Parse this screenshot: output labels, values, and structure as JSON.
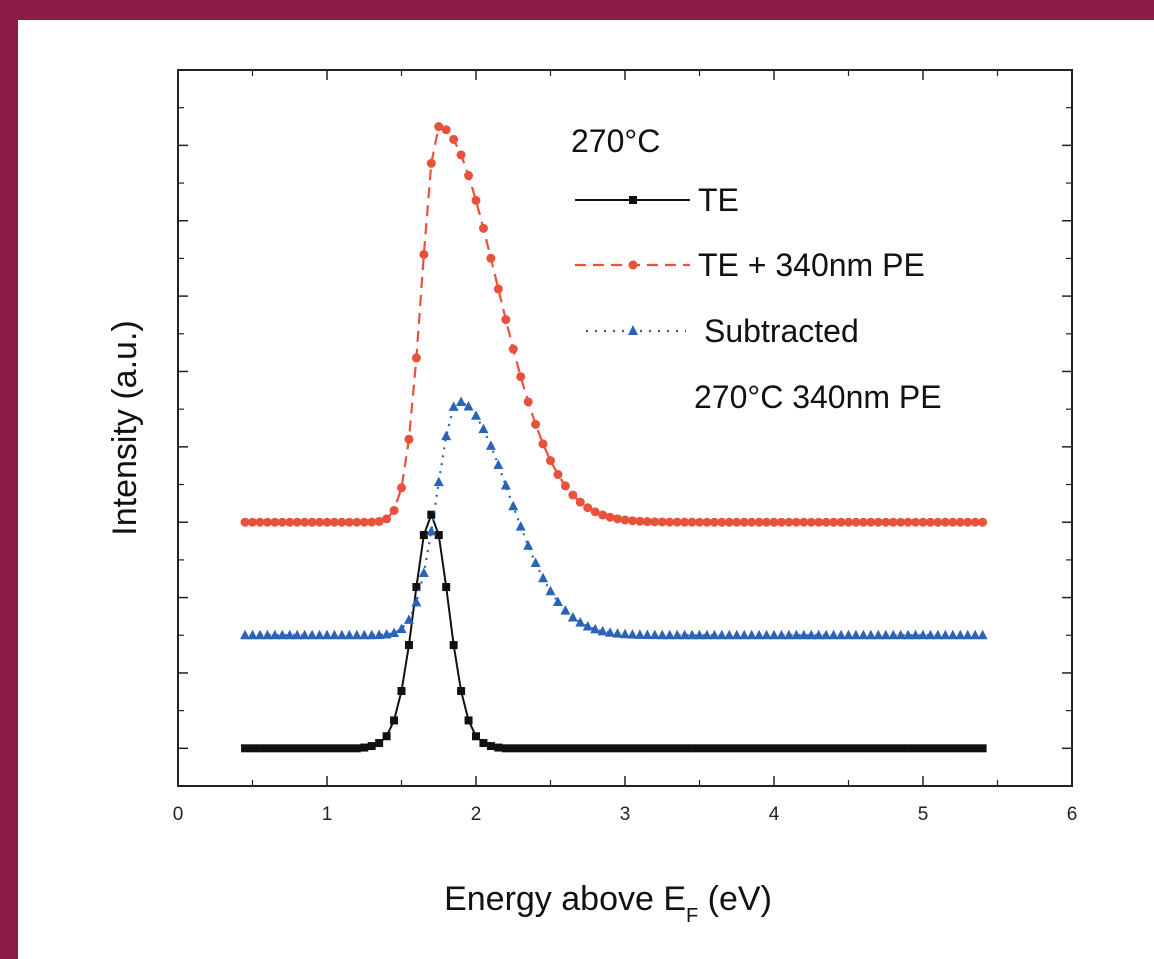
{
  "colors": {
    "frame": "#8a1c45",
    "te": "#111111",
    "te_pe": "#e8513a",
    "subtracted": "#2a63b7"
  },
  "chart_data": {
    "type": "line",
    "title": "",
    "xlabel": "Energy above E",
    "xlabel_sub": "F",
    "xlabel_unit": " (eV)",
    "ylabel": "Intensity (a.u.)",
    "xlim": [
      0,
      6
    ],
    "ylim": [
      -0.5,
      9
    ],
    "y_tick_labels": false,
    "x_ticks": [
      "0",
      "1",
      "2",
      "3",
      "4",
      "5",
      "6"
    ],
    "legend": {
      "header": "270°C",
      "footer": "270°C 340nm PE",
      "placement": "top-right"
    },
    "series": [
      {
        "name": "TE",
        "color": "#111111",
        "marker": "square",
        "line": "solid",
        "baseline": 0,
        "peak_x": 1.7,
        "peak_height": 3.1,
        "x": [
          0.45,
          0.5,
          0.55,
          0.6,
          0.65,
          0.7,
          0.75,
          0.8,
          0.85,
          0.9,
          0.95,
          1.0,
          1.05,
          1.1,
          1.15,
          1.2,
          1.25,
          1.3,
          1.35,
          1.4,
          1.45,
          1.5,
          1.55,
          1.6,
          1.65,
          1.7,
          1.75,
          1.8,
          1.85,
          1.9,
          1.95,
          2.0,
          2.05,
          2.1,
          2.15,
          2.2,
          2.25,
          2.3,
          2.35,
          2.4,
          2.45,
          2.5,
          2.55,
          2.6,
          2.65,
          2.7,
          2.75,
          2.8,
          2.85,
          2.9,
          2.95,
          3.0,
          3.05,
          3.1,
          3.15,
          3.2,
          3.25,
          3.3,
          3.35,
          3.4,
          3.45,
          3.5,
          3.55,
          3.6,
          3.65,
          3.7,
          3.75,
          3.8,
          3.85,
          3.9,
          3.95,
          4.0,
          4.05,
          4.1,
          4.15,
          4.2,
          4.25,
          4.3,
          4.35,
          4.4,
          4.45,
          4.5,
          4.55,
          4.6,
          4.65,
          4.7,
          4.75,
          4.8,
          4.85,
          4.9,
          4.95,
          5.0,
          5.05,
          5.1,
          5.15,
          5.2,
          5.25,
          5.3,
          5.35,
          5.4
        ],
        "y": [
          0.0,
          0.0,
          0.0,
          0.0,
          0.0,
          0.0,
          0.0,
          0.0,
          0.0,
          0.0,
          0.0,
          0.0,
          0.0,
          0.0,
          0.0,
          0.0,
          0.01,
          0.03,
          0.07,
          0.16,
          0.37,
          0.76,
          1.37,
          2.14,
          2.83,
          3.1,
          2.83,
          2.14,
          1.37,
          0.76,
          0.37,
          0.16,
          0.07,
          0.03,
          0.01,
          0.0,
          0.0,
          0.0,
          0.0,
          0.0,
          0.0,
          0.0,
          0.0,
          0.0,
          0.0,
          0.0,
          0.0,
          0.0,
          0.0,
          0.0,
          0.0,
          0.0,
          0.0,
          0.0,
          0.0,
          0.0,
          0.0,
          0.0,
          0.0,
          0.0,
          0.0,
          0.0,
          0.0,
          0.0,
          0.0,
          0.0,
          0.0,
          0.0,
          0.0,
          0.0,
          0.0,
          0.0,
          0.0,
          0.0,
          0.0,
          0.0,
          0.0,
          0.0,
          0.0,
          0.0,
          0.0,
          0.0,
          0.0,
          0.0,
          0.0,
          0.0,
          0.0,
          0.0,
          0.0,
          0.0,
          0.0,
          0.0,
          0.0,
          0.0,
          0.0,
          0.0,
          0.0,
          0.0,
          0.0,
          0.0
        ]
      },
      {
        "name": "TE + 340nm PE",
        "color": "#e8513a",
        "marker": "circle",
        "line": "dashed",
        "baseline": 3.0,
        "peak_x": 1.75,
        "peak_height": 5.25,
        "rise_width": 0.16,
        "fall_width": 0.55,
        "x_start": 0.45,
        "x_end": 5.4,
        "step": 0.05
      },
      {
        "name": "Subtracted",
        "color": "#2a63b7",
        "marker": "triangle",
        "line": "dotted",
        "baseline": 1.5,
        "peak_x": 1.88,
        "peak_height": 3.1,
        "rise_width": 0.2,
        "fall_width": 0.48,
        "x_start": 0.45,
        "x_end": 5.4,
        "step": 0.05
      }
    ]
  }
}
